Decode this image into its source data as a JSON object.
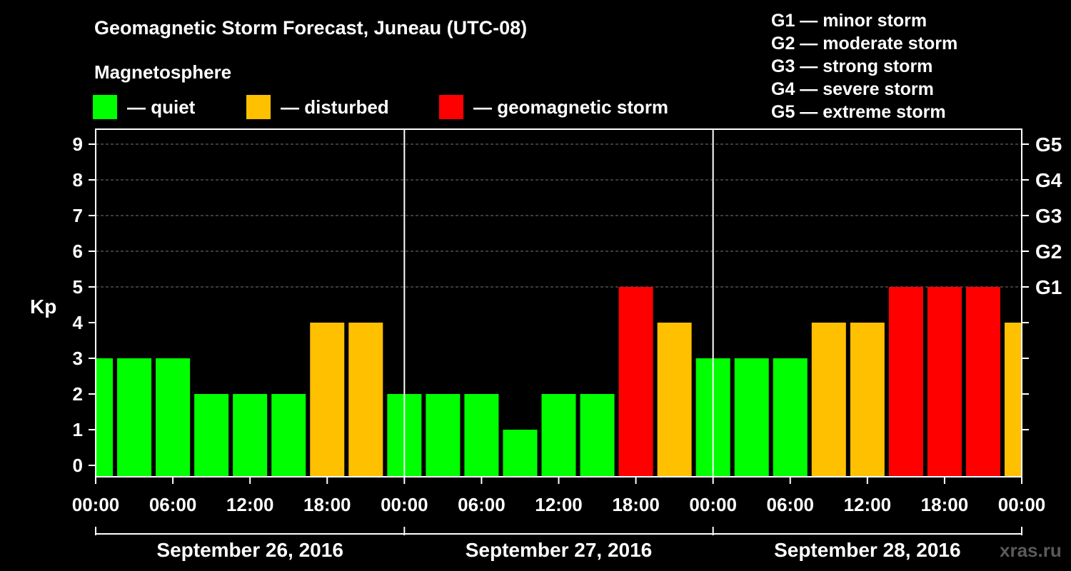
{
  "title": "Geomagnetic Storm Forecast, Juneau (UTC-08)",
  "subtitle": "Magnetosphere",
  "legend": [
    {
      "label": "— quiet",
      "color": "#00ff00"
    },
    {
      "label": "— disturbed",
      "color": "#ffc000"
    },
    {
      "label": "— geomagnetic storm",
      "color": "#ff0000"
    }
  ],
  "storm_levels": [
    "G1 — minor storm",
    "G2 — moderate storm",
    "G3 — strong storm",
    "G4 — severe storm",
    "G5 — extreme storm"
  ],
  "watermark": "xras.ru",
  "colors": {
    "quiet": "#00ff00",
    "disturbed": "#ffc000",
    "storm": "#ff0000",
    "background": "#000000",
    "axis": "#ffffff"
  },
  "chart_data": {
    "type": "bar",
    "ylabel": "Kp",
    "ylim": [
      0,
      9
    ],
    "yticks": [
      0,
      1,
      2,
      3,
      4,
      5,
      6,
      7,
      8,
      9
    ],
    "right_axis_ticks": [
      {
        "kp": 5,
        "label": "G1"
      },
      {
        "kp": 6,
        "label": "G2"
      },
      {
        "kp": 7,
        "label": "G3"
      },
      {
        "kp": 8,
        "label": "G4"
      },
      {
        "kp": 9,
        "label": "G5"
      }
    ],
    "grid": "horizontal dashed at Kp 5-9",
    "x_tick_labels": [
      "00:00",
      "06:00",
      "12:00",
      "18:00",
      "00:00",
      "06:00",
      "12:00",
      "18:00",
      "00:00",
      "06:00",
      "12:00",
      "18:00",
      "00:00"
    ],
    "days": [
      "September 26, 2016",
      "September 27, 2016",
      "September 28, 2016"
    ],
    "categories": [
      "Sep 26 00:00",
      "Sep 26 03:00",
      "Sep 26 06:00",
      "Sep 26 09:00",
      "Sep 26 12:00",
      "Sep 26 15:00",
      "Sep 26 18:00",
      "Sep 26 21:00",
      "Sep 27 00:00",
      "Sep 27 03:00",
      "Sep 27 06:00",
      "Sep 27 09:00",
      "Sep 27 12:00",
      "Sep 27 15:00",
      "Sep 27 18:00",
      "Sep 27 21:00",
      "Sep 28 00:00",
      "Sep 28 03:00",
      "Sep 28 06:00",
      "Sep 28 09:00",
      "Sep 28 12:00",
      "Sep 28 15:00",
      "Sep 28 18:00",
      "Sep 28 21:00",
      "Sep 29 00:00"
    ],
    "values": [
      3,
      3,
      3,
      2,
      2,
      2,
      4,
      4,
      2,
      2,
      2,
      1,
      2,
      2,
      5,
      4,
      3,
      3,
      3,
      4,
      4,
      5,
      5,
      5,
      4
    ],
    "bar_status": [
      "quiet",
      "quiet",
      "quiet",
      "quiet",
      "quiet",
      "quiet",
      "disturbed",
      "disturbed",
      "quiet",
      "quiet",
      "quiet",
      "quiet",
      "quiet",
      "quiet",
      "storm",
      "disturbed",
      "quiet",
      "quiet",
      "quiet",
      "disturbed",
      "disturbed",
      "storm",
      "storm",
      "storm",
      "disturbed"
    ]
  }
}
